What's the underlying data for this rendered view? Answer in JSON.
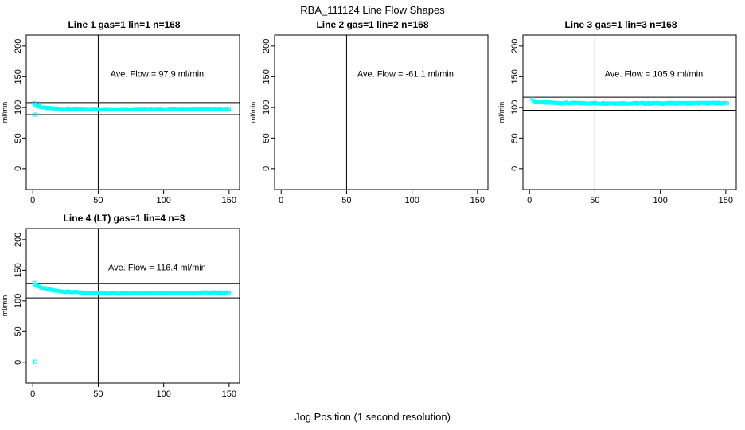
{
  "figure": {
    "main_title": "RBA_111124  Line Flow Shapes",
    "shared_xlabel": "Jog Position (1 second resolution)",
    "background_color": "#ffffff",
    "axis_color": "#000000"
  },
  "chart_data": [
    {
      "type": "scatter",
      "title": "Line 1 gas=1 lin=1 n=168",
      "ylabel": "ml/min",
      "xlabel": "",
      "ave_flow": 97.9,
      "ave_flow_label": "Ave. Flow =  97.9  ml/min",
      "n": 168,
      "xticks": [
        0,
        50,
        100,
        150
      ],
      "yticks": [
        0,
        50,
        100,
        150,
        200
      ],
      "xlim": [
        -5,
        158
      ],
      "ylim": [
        -34,
        218
      ],
      "vline_x": 50,
      "hlines": [
        107.7,
        88.1
      ],
      "point_color": "#00ffff",
      "render_points": 168,
      "jitter": 0.8,
      "annotation_x": 95,
      "annotation_y": 155,
      "trend": [
        [
          1,
          106.5
        ],
        [
          2,
          105
        ],
        [
          3,
          103.5
        ],
        [
          5,
          101.5
        ],
        [
          7,
          100
        ],
        [
          10,
          99
        ],
        [
          14,
          98.3
        ],
        [
          20,
          97.8
        ],
        [
          28,
          97.5
        ],
        [
          40,
          97.3
        ],
        [
          60,
          97.2
        ],
        [
          90,
          97.2
        ],
        [
          120,
          97.3
        ],
        [
          150,
          97.5
        ]
      ],
      "outliers": [
        [
          1.5,
          88
        ]
      ]
    },
    {
      "type": "scatter",
      "title": "Line 2 gas=1 lin=2 n=168",
      "ylabel": "ml/min",
      "xlabel": "",
      "ave_flow": -61.1,
      "ave_flow_label": "Ave. Flow =  -61.1  ml/min",
      "n": 168,
      "xticks": [
        0,
        50,
        100,
        150
      ],
      "yticks": [
        0,
        50,
        100,
        150,
        200
      ],
      "xlim": [
        -5,
        158
      ],
      "ylim": [
        -34,
        218
      ],
      "vline_x": 50,
      "hlines": [],
      "point_color": "#00ffff",
      "render_points": 0,
      "jitter": 0,
      "annotation_x": 95,
      "annotation_y": 155,
      "trend": [],
      "outliers": []
    },
    {
      "type": "scatter",
      "title": "Line 3 gas=1 lin=3 n=168",
      "ylabel": "ml/min",
      "xlabel": "",
      "ave_flow": 105.9,
      "ave_flow_label": "Ave. Flow =  105.9  ml/min",
      "n": 168,
      "xticks": [
        0,
        50,
        100,
        150
      ],
      "yticks": [
        0,
        50,
        100,
        150,
        200
      ],
      "xlim": [
        -5,
        158
      ],
      "ylim": [
        -34,
        218
      ],
      "vline_x": 50,
      "hlines": [
        116.5,
        95.3
      ],
      "point_color": "#00ffff",
      "render_points": 168,
      "jitter": 1.1,
      "annotation_x": 95,
      "annotation_y": 155,
      "trend": [
        [
          2,
          112.5
        ],
        [
          3,
          111
        ],
        [
          5,
          109.5
        ],
        [
          8,
          108.5
        ],
        [
          12,
          107.8
        ],
        [
          18,
          107.3
        ],
        [
          26,
          107
        ],
        [
          40,
          106.8
        ],
        [
          60,
          106.6
        ],
        [
          90,
          106.5
        ],
        [
          120,
          106.6
        ],
        [
          151,
          106.9
        ]
      ],
      "outliers": []
    },
    {
      "type": "scatter",
      "title": "Line 4 (LT) gas=1 lin=4 n=3",
      "ylabel": "ml/min",
      "xlabel": "",
      "ave_flow": 116.4,
      "ave_flow_label": "Ave. Flow =  116.4  ml/min",
      "n": 3,
      "xticks": [
        0,
        50,
        100,
        150
      ],
      "yticks": [
        0,
        50,
        100,
        150,
        200
      ],
      "xlim": [
        -5,
        158
      ],
      "ylim": [
        -34,
        218
      ],
      "vline_x": 50,
      "hlines": [
        128.0,
        104.8
      ],
      "point_color": "#00ffff",
      "render_points": 168,
      "jitter": 0.9,
      "annotation_x": 95,
      "annotation_y": 155,
      "trend": [
        [
          1,
          129
        ],
        [
          2,
          127
        ],
        [
          4,
          124
        ],
        [
          7,
          121.5
        ],
        [
          11,
          119
        ],
        [
          16,
          117
        ],
        [
          22,
          115.5
        ],
        [
          30,
          114.3
        ],
        [
          40,
          113.3
        ],
        [
          52,
          112.6
        ],
        [
          65,
          112.3
        ],
        [
          80,
          112.5
        ],
        [
          100,
          112.9
        ],
        [
          120,
          113.2
        ],
        [
          150,
          113.6
        ]
      ],
      "outliers": [
        [
          2,
          1
        ]
      ]
    }
  ]
}
